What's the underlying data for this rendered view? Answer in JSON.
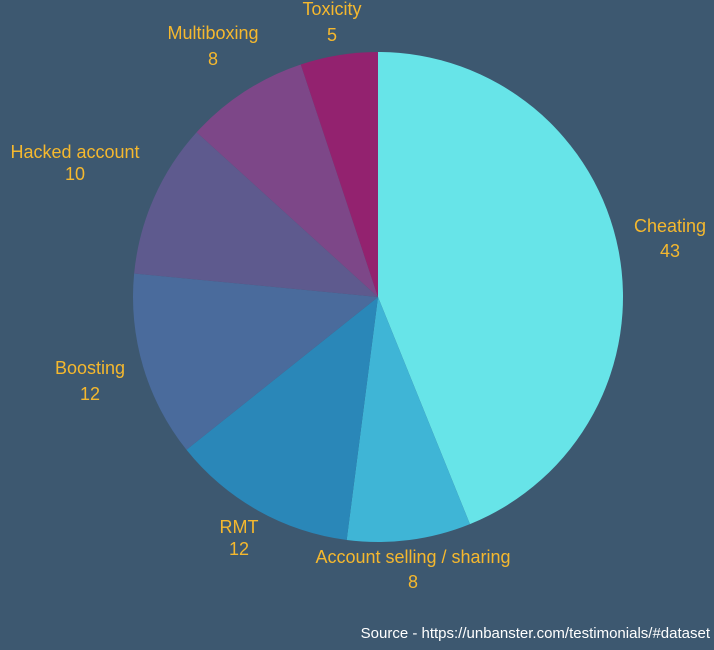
{
  "chart_data": {
    "type": "pie",
    "categories": [
      "Cheating",
      "Account selling / sharing",
      "RMT",
      "Boosting",
      "Hacked account",
      "Multiboxing",
      "Toxicity"
    ],
    "values": [
      43,
      8,
      12,
      12,
      10,
      8,
      5
    ],
    "colors": [
      "#67e4e8",
      "#3fb5d6",
      "#2a87b8",
      "#4a6b9c",
      "#5e5a8e",
      "#7d4788",
      "#93226f"
    ],
    "source": "Source - https://unbanster.com/testimonials/#dataset"
  }
}
